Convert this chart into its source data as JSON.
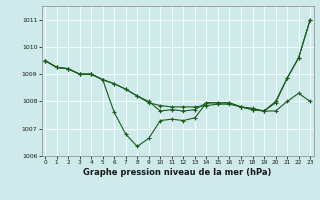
{
  "title": "Graphe pression niveau de la mer (hPa)",
  "bg_color": "#ceeaea",
  "grid_color": "#ffffff",
  "line_color": "#1a5c1a",
  "ylim": [
    1006.0,
    1011.5
  ],
  "xlim": [
    -0.3,
    23.3
  ],
  "yticks": [
    1006,
    1007,
    1008,
    1009,
    1010,
    1011
  ],
  "xticks": [
    0,
    1,
    2,
    3,
    4,
    5,
    6,
    7,
    8,
    9,
    10,
    11,
    12,
    13,
    14,
    15,
    16,
    17,
    18,
    19,
    20,
    21,
    22,
    23
  ],
  "line1": [
    1009.5,
    1009.25,
    1009.2,
    1009.0,
    1009.0,
    1008.8,
    1007.6,
    1006.8,
    1006.35,
    1006.65,
    1007.3,
    1007.35,
    1007.3,
    1007.4,
    1007.95,
    1007.95,
    1007.95,
    1007.8,
    1007.75,
    1007.65,
    1007.95,
    1008.85,
    1009.6,
    1011.0
  ],
  "line2": [
    1009.5,
    1009.25,
    1009.2,
    1009.0,
    1009.0,
    1008.8,
    1008.65,
    1008.45,
    1008.2,
    1008.0,
    1007.65,
    1007.7,
    1007.65,
    1007.7,
    1007.95,
    1007.95,
    1007.95,
    1007.8,
    1007.7,
    1007.65,
    1008.0,
    1008.85,
    1009.6,
    1011.0
  ],
  "line3": [
    1009.5,
    1009.25,
    1009.2,
    1009.0,
    1009.0,
    1008.8,
    1008.65,
    1008.45,
    1008.2,
    1007.95,
    1007.85,
    1007.8,
    1007.8,
    1007.8,
    1007.85,
    1007.9,
    1007.9,
    1007.8,
    1007.7,
    1007.65,
    1007.65,
    1008.0,
    1008.3,
    1008.0
  ]
}
